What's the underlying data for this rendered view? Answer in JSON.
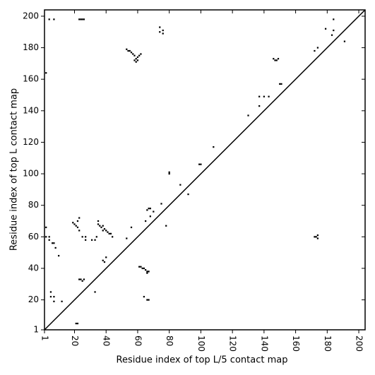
{
  "chart_data": {
    "type": "scatter",
    "xlabel": "Residue index of top L/5 contact map",
    "ylabel": "Residue index of top L contact map",
    "color": "#000000",
    "xlim": [
      1,
      204
    ],
    "ylim": [
      1,
      204
    ],
    "xticks": [
      1,
      20,
      40,
      60,
      80,
      100,
      120,
      140,
      160,
      180,
      200
    ],
    "yticks": [
      1,
      20,
      40,
      60,
      80,
      100,
      120,
      140,
      160,
      180,
      200
    ],
    "x": [
      4,
      7,
      23,
      24,
      25,
      26,
      2,
      53,
      54,
      55,
      56,
      57,
      58,
      58,
      59,
      60,
      61,
      62,
      60,
      59,
      74,
      74,
      76,
      76,
      99,
      100,
      80,
      80,
      108,
      130,
      137,
      137,
      140,
      143,
      146,
      147,
      148,
      149,
      150,
      151,
      172,
      174,
      179,
      183,
      184,
      184,
      191,
      2,
      2,
      4,
      4,
      6,
      7,
      8,
      10,
      5,
      5,
      7,
      7,
      12,
      19,
      20,
      21,
      22,
      22,
      23,
      23,
      25,
      27,
      27,
      31,
      33,
      34,
      35,
      35,
      36,
      37,
      38,
      39,
      40,
      41,
      42,
      43,
      44,
      38,
      38,
      39,
      40,
      53,
      56,
      23,
      24,
      25,
      26,
      33,
      21,
      22,
      61,
      62,
      63,
      64,
      65,
      66,
      66,
      67,
      64,
      66,
      67,
      65,
      66,
      67,
      68,
      68,
      70,
      75,
      78,
      87,
      92,
      172,
      173,
      174,
      174
    ],
    "values": [
      198,
      198,
      198,
      198,
      198,
      198,
      164,
      179,
      178,
      178,
      177,
      176,
      175,
      172,
      173,
      174,
      175,
      176,
      172,
      171,
      193,
      190,
      189,
      191,
      106,
      106,
      100,
      101,
      117,
      137,
      143,
      149,
      149,
      149,
      173,
      172,
      172,
      173,
      157,
      157,
      178,
      180,
      192,
      188,
      198,
      191,
      184,
      66,
      60,
      60,
      58,
      56,
      56,
      53,
      48,
      25,
      22,
      22,
      19,
      19,
      69,
      68,
      67,
      66,
      70,
      72,
      64,
      60,
      60,
      58,
      58,
      58,
      60,
      70,
      68,
      67,
      66,
      67,
      65,
      64,
      63,
      62,
      62,
      60,
      64,
      45,
      44,
      47,
      59,
      66,
      33,
      33,
      32,
      33,
      25,
      5,
      5,
      41,
      41,
      40,
      40,
      39,
      38,
      37,
      38,
      22,
      20,
      20,
      70,
      77,
      78,
      78,
      73,
      76,
      81,
      67,
      93,
      87,
      60,
      60,
      59,
      61
    ]
  }
}
